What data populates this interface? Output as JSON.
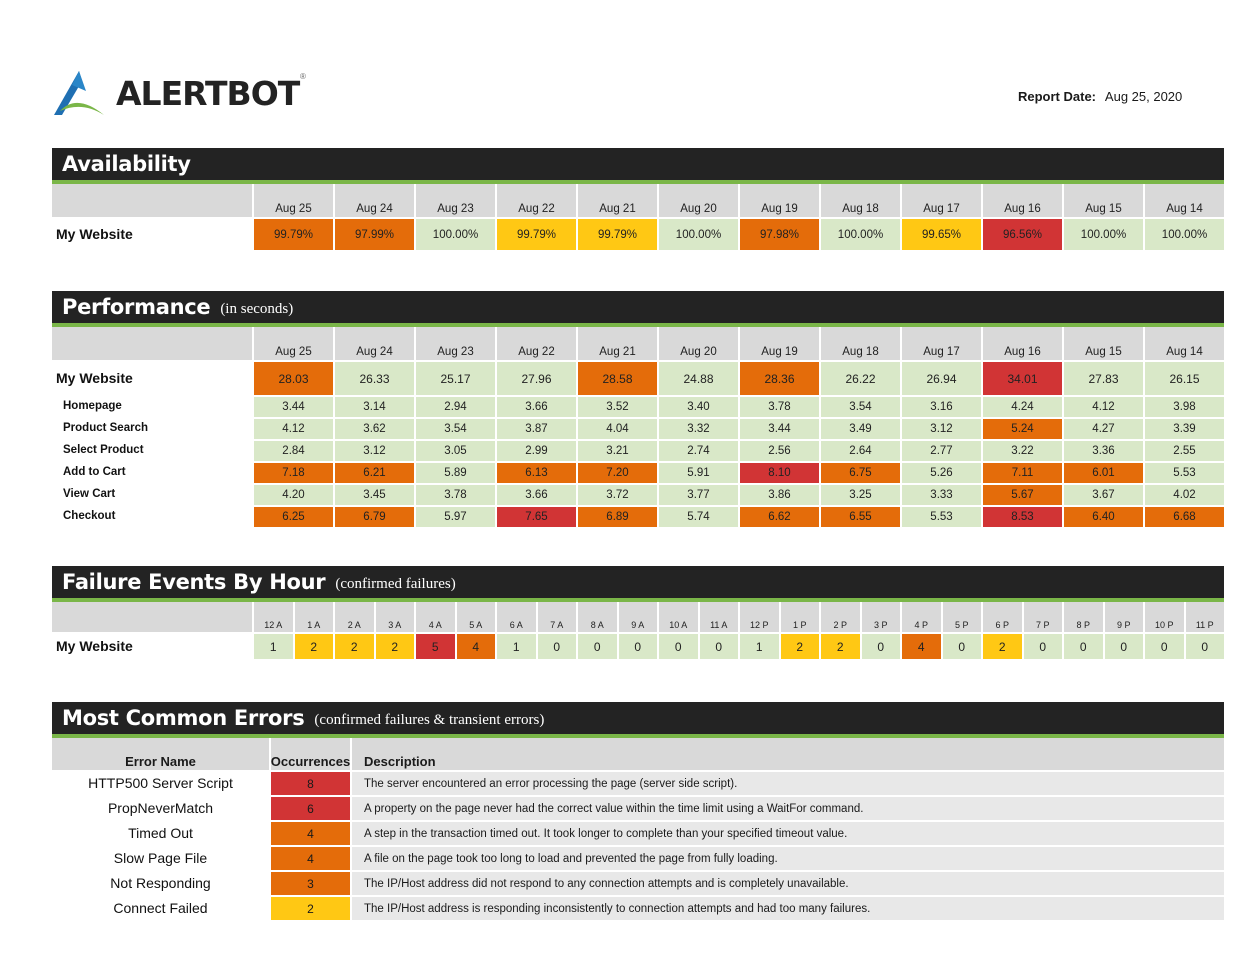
{
  "header": {
    "logo_text": "ALERTBOT",
    "logo_registered": "®",
    "report_date_label": "Report Date:",
    "report_date_value": "Aug 25, 2020"
  },
  "colors": {
    "good": "#d9e8c8",
    "warning": "#ffc814",
    "poor": "#e46c0a",
    "bad": "#d13435",
    "header_bar": "#232323",
    "accent_line": "#7ab648"
  },
  "availability": {
    "title": "Availability",
    "dates": [
      "Aug 25",
      "Aug 24",
      "Aug 23",
      "Aug 22",
      "Aug 21",
      "Aug 20",
      "Aug 19",
      "Aug 18",
      "Aug 17",
      "Aug 16",
      "Aug 15",
      "Aug 14"
    ],
    "rows": [
      {
        "label": "My Website",
        "values": [
          "99.79%",
          "97.99%",
          "100.00%",
          "99.79%",
          "99.79%",
          "100.00%",
          "97.98%",
          "100.00%",
          "99.65%",
          "96.56%",
          "100.00%",
          "100.00%"
        ],
        "status": [
          "orange",
          "orange",
          "green",
          "yellow",
          "yellow",
          "green",
          "orange",
          "green",
          "yellow",
          "red",
          "green",
          "green"
        ]
      }
    ]
  },
  "performance": {
    "title": "Performance",
    "subtitle": "(in seconds)",
    "dates": [
      "Aug 25",
      "Aug 24",
      "Aug 23",
      "Aug 22",
      "Aug 21",
      "Aug 20",
      "Aug 19",
      "Aug 18",
      "Aug 17",
      "Aug 16",
      "Aug 15",
      "Aug 14"
    ],
    "main_row": {
      "label": "My Website",
      "values": [
        "28.03",
        "26.33",
        "25.17",
        "27.96",
        "28.58",
        "24.88",
        "28.36",
        "26.22",
        "26.94",
        "34.01",
        "27.83",
        "26.15"
      ],
      "status": [
        "orange",
        "green",
        "green",
        "green",
        "orange",
        "green",
        "orange",
        "green",
        "green",
        "red",
        "green",
        "green"
      ]
    },
    "steps": [
      {
        "label": "Homepage",
        "values": [
          "3.44",
          "3.14",
          "2.94",
          "3.66",
          "3.52",
          "3.40",
          "3.78",
          "3.54",
          "3.16",
          "4.24",
          "4.12",
          "3.98"
        ],
        "status": [
          "green",
          "green",
          "green",
          "green",
          "green",
          "green",
          "green",
          "green",
          "green",
          "green",
          "green",
          "green"
        ]
      },
      {
        "label": "Product Search",
        "values": [
          "4.12",
          "3.62",
          "3.54",
          "3.87",
          "4.04",
          "3.32",
          "3.44",
          "3.49",
          "3.12",
          "5.24",
          "4.27",
          "3.39"
        ],
        "status": [
          "green",
          "green",
          "green",
          "green",
          "green",
          "green",
          "green",
          "green",
          "green",
          "orange",
          "green",
          "green"
        ]
      },
      {
        "label": "Select Product",
        "values": [
          "2.84",
          "3.12",
          "3.05",
          "2.99",
          "3.21",
          "2.74",
          "2.56",
          "2.64",
          "2.77",
          "3.22",
          "3.36",
          "2.55"
        ],
        "status": [
          "green",
          "green",
          "green",
          "green",
          "green",
          "green",
          "green",
          "green",
          "green",
          "green",
          "green",
          "green"
        ]
      },
      {
        "label": "Add to Cart",
        "values": [
          "7.18",
          "6.21",
          "5.89",
          "6.13",
          "7.20",
          "5.91",
          "8.10",
          "6.75",
          "5.26",
          "7.11",
          "6.01",
          "5.53"
        ],
        "status": [
          "orange",
          "orange",
          "green",
          "orange",
          "orange",
          "green",
          "red",
          "orange",
          "green",
          "orange",
          "orange",
          "green"
        ]
      },
      {
        "label": "View Cart",
        "values": [
          "4.20",
          "3.45",
          "3.78",
          "3.66",
          "3.72",
          "3.77",
          "3.86",
          "3.25",
          "3.33",
          "5.67",
          "3.67",
          "4.02"
        ],
        "status": [
          "green",
          "green",
          "green",
          "green",
          "green",
          "green",
          "green",
          "green",
          "green",
          "orange",
          "green",
          "green"
        ]
      },
      {
        "label": "Checkout",
        "values": [
          "6.25",
          "6.79",
          "5.97",
          "7.65",
          "6.89",
          "5.74",
          "6.62",
          "6.55",
          "5.53",
          "8.53",
          "6.40",
          "6.68"
        ],
        "status": [
          "orange",
          "orange",
          "green",
          "red",
          "orange",
          "green",
          "orange",
          "orange",
          "green",
          "red",
          "orange",
          "orange"
        ]
      }
    ]
  },
  "failures": {
    "title": "Failure Events By Hour",
    "subtitle": "(confirmed failures)",
    "hours": [
      "12 A",
      "1 A",
      "2 A",
      "3 A",
      "4 A",
      "5 A",
      "6 A",
      "7 A",
      "8 A",
      "9 A",
      "10 A",
      "11 A",
      "12 P",
      "1 P",
      "2 P",
      "3 P",
      "4 P",
      "5 P",
      "6 P",
      "7 P",
      "8 P",
      "9 P",
      "10 P",
      "11 P"
    ],
    "rows": [
      {
        "label": "My Website",
        "values": [
          "1",
          "2",
          "2",
          "2",
          "5",
          "4",
          "1",
          "0",
          "0",
          "0",
          "0",
          "0",
          "1",
          "2",
          "2",
          "0",
          "4",
          "0",
          "2",
          "0",
          "0",
          "0",
          "0",
          "0"
        ],
        "status": [
          "green",
          "yellow",
          "yellow",
          "yellow",
          "red",
          "orange",
          "green",
          "green",
          "green",
          "green",
          "green",
          "green",
          "green",
          "yellow",
          "yellow",
          "green",
          "orange",
          "green",
          "yellow",
          "green",
          "green",
          "green",
          "green",
          "green"
        ]
      }
    ]
  },
  "errors": {
    "title": "Most Common Errors",
    "subtitle": "(confirmed failures & transient errors)",
    "columns": {
      "name": "Error Name",
      "occurrences": "Occurrences",
      "description": "Description"
    },
    "rows": [
      {
        "name": "HTTP500 Server Script",
        "count": "8",
        "status": "red",
        "description": "The server encountered an error processing the page (server side script)."
      },
      {
        "name": "PropNeverMatch",
        "count": "6",
        "status": "red",
        "description": "A property on the page never had the correct value within the time limit using a WaitFor command."
      },
      {
        "name": "Timed Out",
        "count": "4",
        "status": "orange",
        "description": "A step in the transaction timed out. It took longer to complete than your specified timeout value."
      },
      {
        "name": "Slow Page File",
        "count": "4",
        "status": "orange",
        "description": "A file on the page took too long to load and prevented the page from fully loading."
      },
      {
        "name": "Not Responding",
        "count": "3",
        "status": "orange",
        "description": "The IP/Host address did not respond to any connection attempts and is completely unavailable."
      },
      {
        "name": "Connect Failed",
        "count": "2",
        "status": "yellow",
        "description": "The IP/Host address is responding inconsistently to connection attempts and had too many failures."
      }
    ]
  }
}
